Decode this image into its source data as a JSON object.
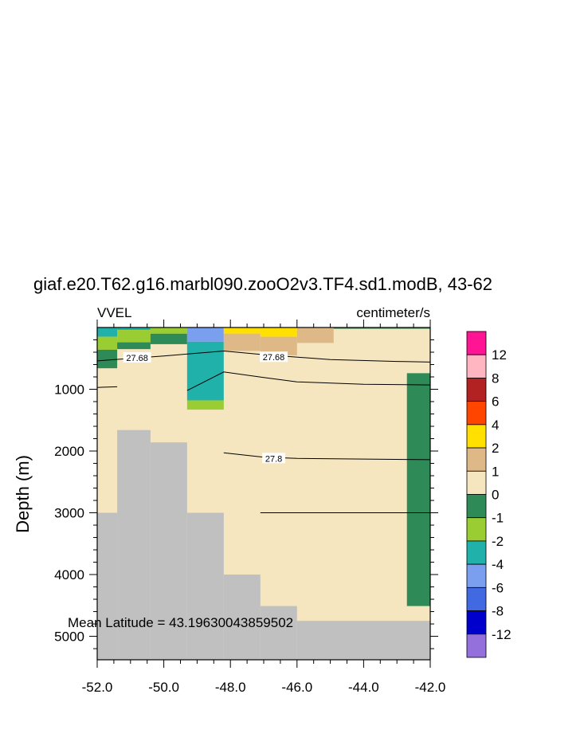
{
  "chart_data": {
    "type": "heatmap",
    "title": "giaf.e20.T62.g16.marbl090.zooO2v3.TF4.sd1.modB, 43-62",
    "left_subtitle": "VVEL",
    "right_subtitle": "centimeter/s",
    "xlabel": "",
    "ylabel": "Depth (m)",
    "xlim": [
      -52.0,
      -42.0
    ],
    "ylim": [
      5380,
      0
    ],
    "x_ticks": [
      "-52.0",
      "-50.0",
      "-48.0",
      "-46.0",
      "-44.0",
      "-42.0"
    ],
    "x_tick_values": [
      -52,
      -50,
      -48,
      -46,
      -44,
      -42
    ],
    "y_ticks": [
      "1000",
      "2000",
      "3000",
      "4000",
      "5000"
    ],
    "y_tick_values": [
      1000,
      2000,
      3000,
      4000,
      5000
    ],
    "annotation": "Mean Latitude = 43.19630043859502",
    "colorbar": {
      "labels": [
        "12",
        "8",
        "6",
        "4",
        "2",
        "1",
        "0",
        "-1",
        "-2",
        "-4",
        "-6",
        "-8",
        "-12"
      ],
      "colors_top_to_bottom": [
        "#ff1493",
        "#ffb6c1",
        "#b22222",
        "#ff4500",
        "#ffe000",
        "#deb887",
        "#f5e6c0",
        "#2e8b57",
        "#9acd32",
        "#20b2aa",
        "#7b9fef",
        "#4169e1",
        "#0000cd",
        "#9370db"
      ]
    },
    "fill_colors": {
      "background": "#f5e6c0",
      "land": "#c0c0c0",
      "dark_green": "#2e8b57",
      "light_green": "#9acd32",
      "teal": "#20b2aa",
      "light_blue": "#7b9fef",
      "tan": "#deb887",
      "yellow": "#ffe000"
    },
    "cells": [
      {
        "x0": -52.0,
        "x1": -51.4,
        "d0": 0,
        "d1": 150,
        "color": "teal"
      },
      {
        "x0": -52.0,
        "x1": -51.4,
        "d0": 150,
        "d1": 360,
        "color": "light_green"
      },
      {
        "x0": -52.0,
        "x1": -51.4,
        "d0": 360,
        "d1": 660,
        "color": "dark_green"
      },
      {
        "x0": -51.4,
        "x1": -50.4,
        "d0": 0,
        "d1": 40,
        "color": "teal"
      },
      {
        "x0": -51.4,
        "x1": -50.4,
        "d0": 40,
        "d1": 240,
        "color": "light_green"
      },
      {
        "x0": -51.4,
        "x1": -50.4,
        "d0": 240,
        "d1": 350,
        "color": "dark_green"
      },
      {
        "x0": -50.4,
        "x1": -49.3,
        "d0": 0,
        "d1": 100,
        "color": "light_green"
      },
      {
        "x0": -50.4,
        "x1": -49.3,
        "d0": 100,
        "d1": 270,
        "color": "dark_green"
      },
      {
        "x0": -49.3,
        "x1": -48.2,
        "d0": 0,
        "d1": 230,
        "color": "light_blue"
      },
      {
        "x0": -49.3,
        "x1": -48.2,
        "d0": 230,
        "d1": 1180,
        "color": "teal"
      },
      {
        "x0": -49.3,
        "x1": -48.2,
        "d0": 1180,
        "d1": 1330,
        "color": "light_green"
      },
      {
        "x0": -48.2,
        "x1": -47.1,
        "d0": 0,
        "d1": 100,
        "color": "yellow"
      },
      {
        "x0": -48.2,
        "x1": -47.1,
        "d0": 100,
        "d1": 380,
        "color": "tan"
      },
      {
        "x0": -47.1,
        "x1": -46.0,
        "d0": 0,
        "d1": 150,
        "color": "yellow"
      },
      {
        "x0": -47.1,
        "x1": -46.0,
        "d0": 150,
        "d1": 450,
        "color": "tan"
      },
      {
        "x0": -46.0,
        "x1": -44.9,
        "d0": 0,
        "d1": 250,
        "color": "tan"
      },
      {
        "x0": -44.9,
        "x1": -42.0,
        "d0": 0,
        "d1": 20,
        "color": "dark_green"
      },
      {
        "x0": -42.7,
        "x1": -42.0,
        "d0": 740,
        "d1": 4510,
        "color": "dark_green"
      }
    ],
    "land_columns": [
      {
        "x0": -52.0,
        "x1": -51.4,
        "top": 3000
      },
      {
        "x0": -51.4,
        "x1": -50.4,
        "top": 1660
      },
      {
        "x0": -50.4,
        "x1": -49.3,
        "top": 1860
      },
      {
        "x0": -49.3,
        "x1": -48.2,
        "top": 3000
      },
      {
        "x0": -48.2,
        "x1": -47.1,
        "top": 4000
      },
      {
        "x0": -47.1,
        "x1": -46.0,
        "top": 4510
      },
      {
        "x0": -46.0,
        "x1": -42.0,
        "top": 4750
      }
    ],
    "contours": [
      {
        "label": "27.68",
        "label_positions": [
          [
            -50.8,
            490
          ],
          [
            -46.7,
            480
          ]
        ],
        "points": [
          [
            -52.0,
            540
          ],
          [
            -50.0,
            460
          ],
          [
            -48.2,
            380
          ],
          [
            -47.0,
            440
          ],
          [
            -45.0,
            520
          ],
          [
            -43.0,
            550
          ],
          [
            -42.0,
            560
          ]
        ]
      },
      {
        "label": "",
        "label_positions": [],
        "points": [
          [
            -52.0,
            970
          ],
          [
            -51.4,
            960
          ]
        ]
      },
      {
        "label": "",
        "label_positions": [],
        "points": [
          [
            -49.3,
            1020
          ],
          [
            -48.2,
            720
          ],
          [
            -47.0,
            810
          ],
          [
            -46.0,
            880
          ],
          [
            -44.0,
            920
          ],
          [
            -42.0,
            930
          ]
        ]
      },
      {
        "label": "27.8",
        "label_positions": [
          [
            -46.7,
            2120
          ]
        ],
        "points": [
          [
            -48.2,
            2030
          ],
          [
            -47.0,
            2100
          ],
          [
            -46.0,
            2120
          ],
          [
            -44.0,
            2130
          ],
          [
            -42.0,
            2140
          ]
        ]
      },
      {
        "label": "",
        "label_positions": [],
        "points": [
          [
            -47.1,
            3000
          ],
          [
            -42.0,
            3000
          ]
        ]
      }
    ]
  }
}
